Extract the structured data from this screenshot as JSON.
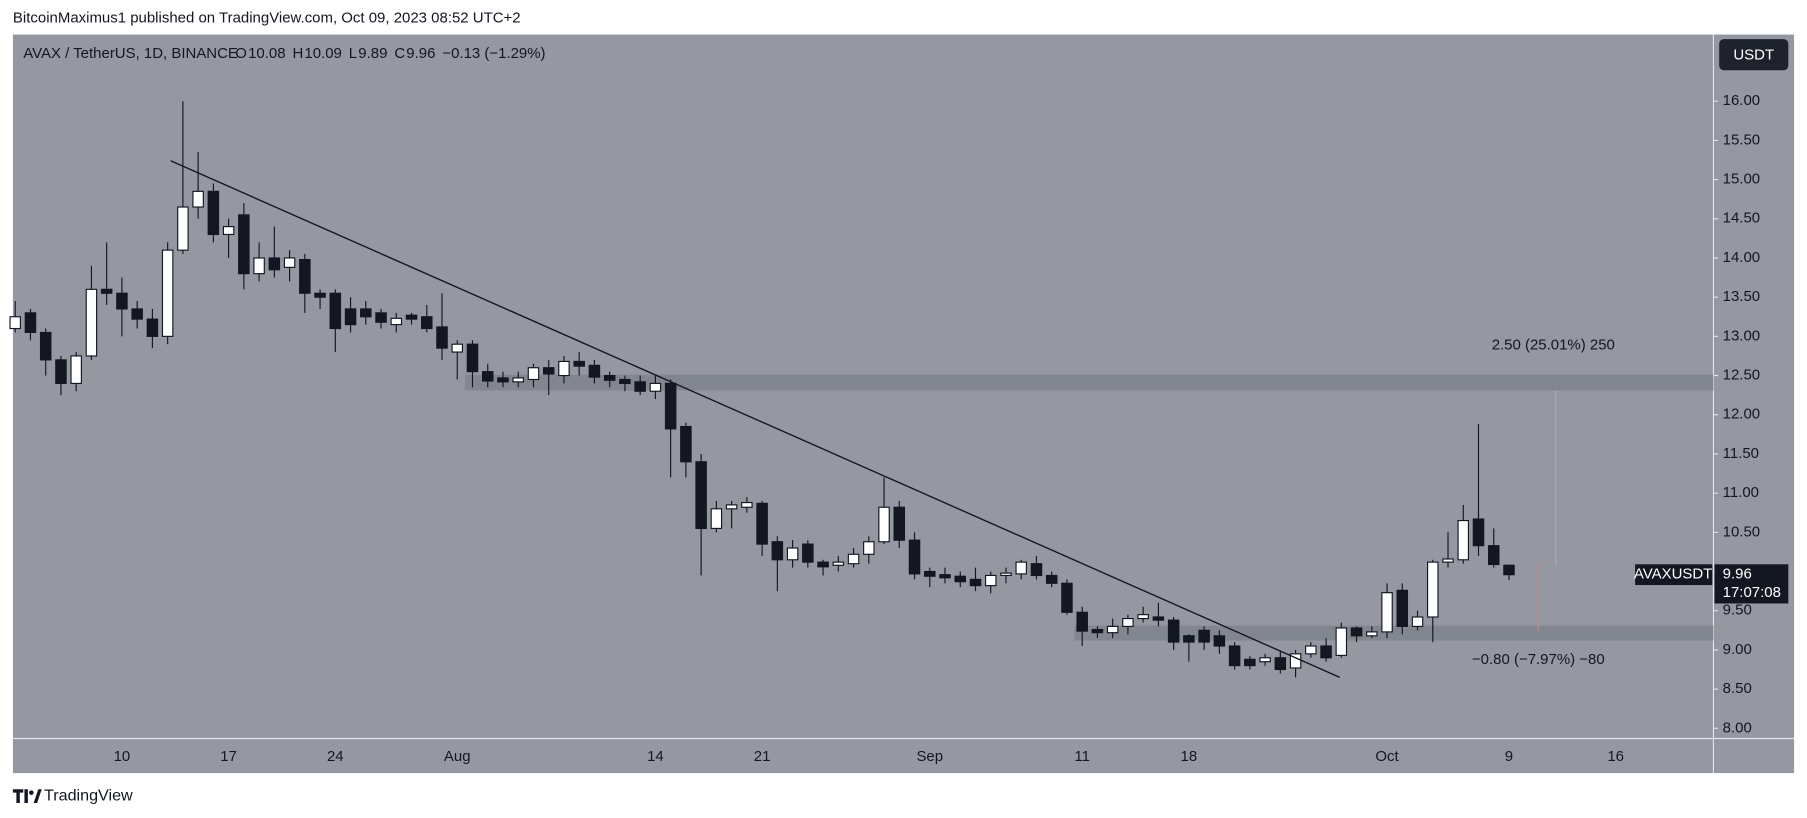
{
  "attribution": "BitcoinMaximus1 published on TradingView.com, Oct 09, 2023 08:52 UTC+2",
  "footer": "TradingView",
  "currency_button": "USDT",
  "chart_data": {
    "type": "candlestick",
    "title": "AVAX / TetherUS, 1D, BINANCE",
    "ohlc_header": [
      {
        "key": "O",
        "value": "10.08"
      },
      {
        "key": "H",
        "value": "10.09"
      },
      {
        "key": "L",
        "value": "9.89"
      },
      {
        "key": "C",
        "value": "9.96"
      }
    ],
    "change": "−0.13 (−1.29%)",
    "categories": [
      null,
      null,
      null,
      null,
      null,
      null,
      null,
      "10",
      null,
      null,
      null,
      null,
      null,
      null,
      "17",
      null,
      null,
      null,
      null,
      null,
      null,
      "24",
      null,
      null,
      null,
      null,
      null,
      null,
      null,
      "Aug",
      null,
      null,
      null,
      null,
      null,
      null,
      null,
      null,
      null,
      null,
      null,
      null,
      "14",
      null,
      null,
      null,
      null,
      null,
      null,
      "21",
      null,
      null,
      null,
      null,
      null,
      null,
      null,
      null,
      null,
      null,
      "Sep",
      null,
      null,
      null,
      null,
      null,
      null,
      null,
      null,
      null,
      "11",
      null,
      null,
      null,
      null,
      null,
      null,
      "18",
      null,
      null,
      null,
      null,
      null,
      null,
      null,
      null,
      null,
      null,
      null,
      null,
      "Oct",
      null,
      null,
      null,
      null,
      null,
      null,
      null,
      "9",
      null,
      null,
      null,
      null,
      null,
      null,
      "16",
      null,
      null,
      null,
      null,
      null,
      null
    ],
    "open": [
      13.1,
      13.3,
      13.05,
      12.7,
      12.4,
      12.75,
      13.6,
      13.55,
      13.35,
      13.22,
      13.0,
      14.1,
      14.65,
      14.85,
      14.3,
      14.55,
      13.8,
      14.0,
      13.88,
      13.98,
      13.55,
      13.55,
      13.35,
      13.35,
      13.3,
      13.15,
      13.27,
      13.25,
      13.12,
      12.8,
      12.9,
      12.55,
      12.47,
      12.42,
      12.45,
      12.6,
      12.5,
      12.68,
      12.63,
      12.5,
      12.45,
      12.42,
      12.3,
      12.4,
      11.85,
      11.4,
      10.55,
      10.8,
      10.82,
      10.87,
      10.38,
      10.15,
      10.35,
      10.12,
      10.08,
      10.1,
      10.22,
      10.38,
      10.82,
      10.4,
      10.0,
      9.96,
      9.94,
      9.9,
      9.82,
      9.95,
      9.97,
      10.1,
      9.95,
      9.85,
      9.48,
      9.26,
      9.22,
      9.3,
      9.4,
      9.42,
      9.38,
      9.18,
      9.25,
      9.18,
      9.05,
      8.88,
      8.85,
      8.9,
      8.77,
      8.95,
      9.05,
      8.93,
      9.28,
      9.18,
      9.23,
      9.76,
      9.3,
      9.42,
      10.12,
      10.15,
      10.67,
      10.33,
      10.08,
      null,
      null,
      null,
      null,
      null,
      null,
      null,
      null,
      null,
      null,
      null,
      null,
      null
    ],
    "high": [
      13.45,
      13.35,
      13.1,
      12.75,
      12.8,
      13.9,
      14.2,
      13.75,
      13.45,
      13.35,
      14.2,
      16.0,
      15.35,
      14.95,
      14.5,
      14.7,
      14.2,
      14.4,
      14.1,
      14.05,
      13.6,
      13.6,
      13.5,
      13.45,
      13.35,
      13.3,
      13.3,
      13.4,
      13.55,
      12.95,
      12.95,
      12.65,
      12.55,
      12.55,
      12.65,
      12.7,
      12.75,
      12.8,
      12.7,
      12.55,
      12.5,
      12.5,
      12.5,
      12.45,
      11.9,
      11.5,
      10.9,
      10.9,
      10.95,
      10.9,
      10.45,
      10.4,
      10.4,
      10.15,
      10.2,
      10.3,
      10.45,
      11.2,
      10.9,
      10.5,
      10.05,
      10.05,
      10.0,
      10.05,
      10.0,
      10.05,
      10.15,
      10.2,
      10.0,
      9.9,
      9.55,
      9.3,
      9.4,
      9.45,
      9.55,
      9.6,
      9.42,
      9.2,
      9.3,
      9.25,
      9.1,
      8.92,
      8.95,
      8.98,
      9.0,
      9.1,
      9.15,
      9.35,
      9.3,
      9.3,
      9.85,
      9.85,
      9.5,
      10.15,
      10.5,
      10.85,
      11.88,
      10.55,
      10.09,
      null,
      null,
      null,
      null,
      null,
      null,
      null,
      null,
      null,
      null,
      null,
      null,
      null
    ],
    "low": [
      13.05,
      12.95,
      12.5,
      12.25,
      12.3,
      12.7,
      13.4,
      13.0,
      13.1,
      12.85,
      12.9,
      14.05,
      14.5,
      14.2,
      14.0,
      13.6,
      13.7,
      13.75,
      13.7,
      13.3,
      13.35,
      12.8,
      13.05,
      13.15,
      13.1,
      13.05,
      13.15,
      13.05,
      12.7,
      12.45,
      12.35,
      12.35,
      12.35,
      12.35,
      12.35,
      12.25,
      12.4,
      12.5,
      12.4,
      12.35,
      12.3,
      12.25,
      12.2,
      11.2,
      11.2,
      9.95,
      10.5,
      10.55,
      10.75,
      10.2,
      9.75,
      10.05,
      10.05,
      9.95,
      10.0,
      10.05,
      10.1,
      10.35,
      10.3,
      9.9,
      9.8,
      9.85,
      9.8,
      9.75,
      9.72,
      9.85,
      9.9,
      9.9,
      9.8,
      9.45,
      9.05,
      9.15,
      9.15,
      9.2,
      9.35,
      9.3,
      9.0,
      8.85,
      9.0,
      8.95,
      8.75,
      8.75,
      8.8,
      8.7,
      8.65,
      8.9,
      8.85,
      8.9,
      9.1,
      9.15,
      9.15,
      9.2,
      9.25,
      9.1,
      10.05,
      10.1,
      10.2,
      10.05,
      9.89,
      null,
      null,
      null,
      null,
      null,
      null,
      null,
      null,
      null,
      null,
      null,
      null,
      null
    ],
    "close": [
      13.25,
      13.05,
      12.7,
      12.4,
      12.75,
      13.6,
      13.55,
      13.35,
      13.22,
      13.0,
      14.1,
      14.65,
      14.85,
      14.3,
      14.4,
      13.8,
      14.0,
      13.85,
      14.0,
      13.55,
      13.5,
      13.1,
      13.15,
      13.25,
      13.18,
      13.23,
      13.22,
      13.1,
      12.85,
      12.9,
      12.55,
      12.43,
      12.42,
      12.47,
      12.6,
      12.52,
      12.68,
      12.62,
      12.48,
      12.44,
      12.4,
      12.3,
      12.4,
      11.82,
      11.4,
      10.55,
      10.8,
      10.85,
      10.88,
      10.35,
      10.15,
      10.3,
      10.12,
      10.06,
      10.12,
      10.22,
      10.38,
      10.82,
      10.4,
      9.97,
      9.94,
      9.92,
      9.87,
      9.82,
      9.95,
      9.98,
      10.12,
      9.95,
      9.85,
      9.48,
      9.24,
      9.22,
      9.3,
      9.4,
      9.45,
      9.38,
      9.1,
      9.1,
      9.1,
      9.05,
      8.8,
      8.8,
      8.9,
      8.75,
      8.95,
      9.05,
      8.9,
      9.28,
      9.18,
      9.23,
      9.73,
      9.3,
      9.42,
      10.12,
      10.16,
      10.65,
      10.33,
      10.09,
      9.96,
      null,
      null,
      null,
      null,
      null,
      null,
      null,
      null,
      null,
      null,
      null,
      null,
      null
    ],
    "up_color": "#ffffff",
    "down_color": "#131722",
    "ylim": [
      7.87,
      16.85
    ],
    "yticks": [
      {
        "value": 8,
        "label": "8.00"
      },
      {
        "value": 8.5,
        "label": "8.50"
      },
      {
        "value": 9,
        "label": "9.00"
      },
      {
        "value": 9.5,
        "label": "9.50"
      },
      {
        "value": 10,
        "label": "10.00"
      },
      {
        "value": 10.5,
        "label": "10.50"
      },
      {
        "value": 11,
        "label": "11.00"
      },
      {
        "value": 11.5,
        "label": "11.50"
      },
      {
        "value": 12,
        "label": "12.00"
      },
      {
        "value": 12.5,
        "label": "12.50"
      },
      {
        "value": 13,
        "label": "13.00"
      },
      {
        "value": 13.5,
        "label": "13.50"
      },
      {
        "value": 14,
        "label": "14.00"
      },
      {
        "value": 14.5,
        "label": "14.50"
      },
      {
        "value": 15,
        "label": "15.00"
      },
      {
        "value": 15.5,
        "label": "15.50"
      },
      {
        "value": 16,
        "label": "16.00"
      }
    ],
    "zones": [
      {
        "low": 12.31,
        "high": 12.51,
        "start": 30
      },
      {
        "low": 9.12,
        "high": 9.31,
        "start": 70
      }
    ],
    "trendline": [
      {
        "x": 10.2,
        "y": 15.24
      },
      {
        "x": 86.9,
        "y": 8.65
      }
    ],
    "measurements": [
      "2.50 (25.01%) 250",
      "−0.80 (−7.97%) −80"
    ],
    "symbol_tag": "AVAXUSDT",
    "last_price": 9.96,
    "countdown": "17:07:08"
  }
}
